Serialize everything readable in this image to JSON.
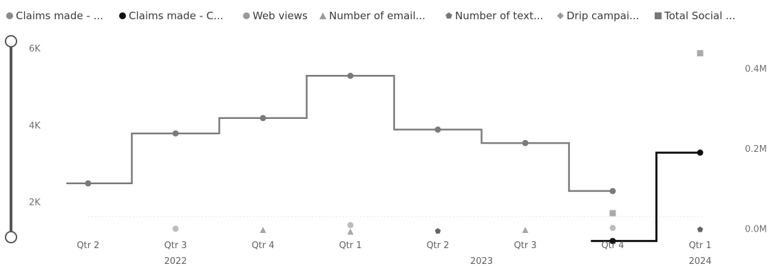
{
  "chart_data": {
    "type": "line",
    "step": true,
    "legend": {
      "position": "top",
      "items": [
        {
          "label": "Claims made - ...",
          "color": "#8a8a8a",
          "marker": "circle"
        },
        {
          "label": "Claims made - C...",
          "color": "#111111",
          "marker": "circle"
        },
        {
          "label": "Web views",
          "color": "#9a9a9a",
          "marker": "circle"
        },
        {
          "label": "Number of email...",
          "color": "#9a9a9a",
          "marker": "triangle"
        },
        {
          "label": "Number of text...",
          "color": "#777777",
          "marker": "pentagon"
        },
        {
          "label": "Drip campai...",
          "color": "#9a9a9a",
          "marker": "diamond"
        },
        {
          "label": "Total Social ...",
          "color": "#777777",
          "marker": "square"
        }
      ]
    },
    "quarters": [
      "Qtr 2",
      "Qtr 3",
      "Qtr 4",
      "Qtr 1",
      "Qtr 2",
      "Qtr 3",
      "Qtr 4",
      "Qtr 1"
    ],
    "years": [
      {
        "label": "2022",
        "start": 0,
        "end": 2
      },
      {
        "label": "2023",
        "start": 3,
        "end": 6
      },
      {
        "label": "2024",
        "start": 7,
        "end": 7
      }
    ],
    "left_axis": {
      "ticks": [
        "2K",
        "4K",
        "6K"
      ],
      "tick_values": [
        2000,
        4000,
        6000
      ],
      "range": [
        1100,
        6200
      ]
    },
    "right_axis": {
      "ticks": [
        "0.0M",
        "0.2M",
        "0.4M"
      ],
      "tick_values": [
        0,
        200000,
        400000
      ],
      "range": [
        -20000,
        470000
      ]
    },
    "grid": false,
    "series": [
      {
        "name": "Claims made - ...",
        "axis": "left",
        "color": "#7a7a7a",
        "marker": "circle",
        "values": [
          2500,
          3800,
          4200,
          5300,
          3900,
          3550,
          2300,
          null
        ]
      },
      {
        "name": "Claims made - C...",
        "axis": "left",
        "color": "#111111",
        "marker": "circle",
        "values": [
          null,
          null,
          null,
          null,
          null,
          null,
          1000,
          3300
        ]
      },
      {
        "name": "Web views",
        "axis": "right",
        "color": "#bdbdbd",
        "marker": "circle",
        "values": [
          null,
          1000,
          null,
          10000,
          null,
          null,
          3000,
          null
        ]
      },
      {
        "name": "Number of email...",
        "axis": "right",
        "color": "#a6a6a6",
        "marker": "triangle",
        "values": [
          null,
          null,
          -2000,
          -6000,
          null,
          -2000,
          null,
          null
        ]
      },
      {
        "name": "Number of text...",
        "axis": "right",
        "color": "#666666",
        "marker": "pentagon",
        "values": [
          null,
          null,
          null,
          null,
          -5000,
          null,
          null,
          -1000
        ]
      },
      {
        "name": "Total Social ...",
        "axis": "right",
        "color": "#aaaaaa",
        "marker": "square",
        "values": [
          null,
          null,
          null,
          null,
          null,
          null,
          40000,
          440000
        ]
      }
    ]
  }
}
